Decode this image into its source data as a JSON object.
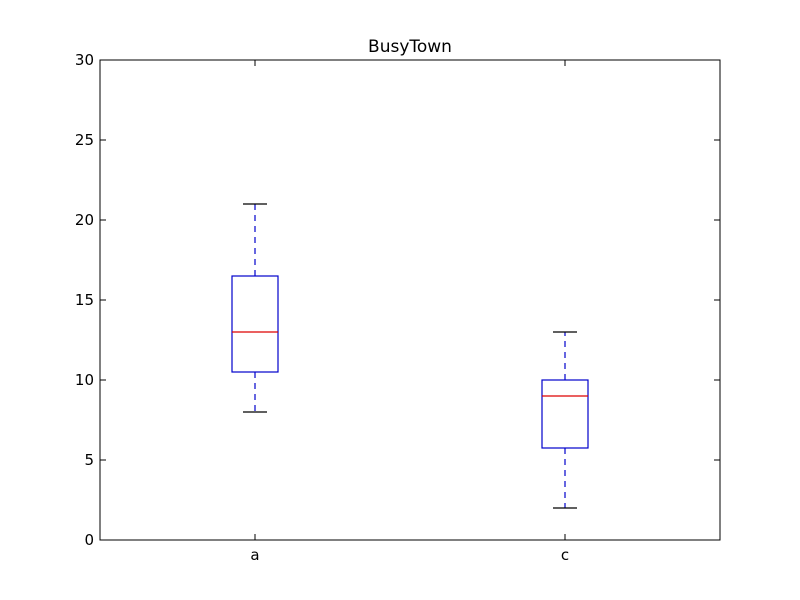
{
  "chart_data": {
    "type": "box",
    "title": "BusyTown",
    "xlabel": "",
    "ylabel": "",
    "ylim": [
      0,
      30
    ],
    "yticks": [
      0,
      5,
      10,
      15,
      20,
      25,
      30
    ],
    "categories": [
      "a",
      "c"
    ],
    "boxes": [
      {
        "label": "a",
        "whisker_low": 8,
        "q1": 10.5,
        "median": 13,
        "q3": 16.5,
        "whisker_high": 21
      },
      {
        "label": "c",
        "whisker_low": 2,
        "q1": 5.75,
        "median": 9,
        "q3": 10,
        "whisker_high": 13
      }
    ],
    "grid": false,
    "colors": {
      "box": "#0000cc",
      "median": "#dd0000",
      "whisker": "#0000cc",
      "cap": "#000000",
      "axes": "#000000"
    }
  }
}
